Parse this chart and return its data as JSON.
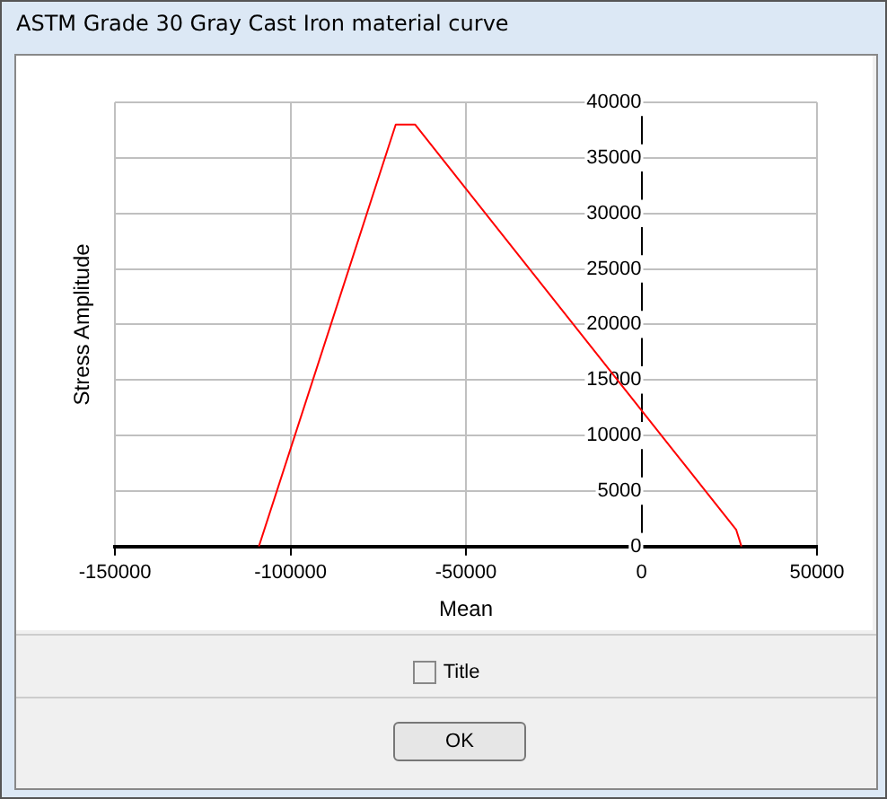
{
  "chart_data": {
    "type": "line",
    "title": "ASTM Grade 30 Gray Cast Iron material curve",
    "xlabel": "Mean",
    "ylabel": "Stress Amplitude",
    "x": [
      -109000,
      -70000,
      -64500,
      27000,
      28500
    ],
    "series": [
      {
        "color": "#ff0000",
        "values": [
          0,
          38000,
          38000,
          1500,
          0
        ]
      }
    ],
    "xlim": [
      -150000,
      50000
    ],
    "xticks": [
      -150000,
      -100000,
      -50000,
      0,
      50000
    ],
    "ylim": [
      0,
      40000
    ],
    "yticks": [
      0,
      5000,
      10000,
      15000,
      20000,
      25000,
      30000,
      35000,
      40000
    ],
    "grid": true,
    "legend": false,
    "marker": "none",
    "line_style": "solid",
    "annotations": [
      "Title",
      "OK"
    ]
  }
}
